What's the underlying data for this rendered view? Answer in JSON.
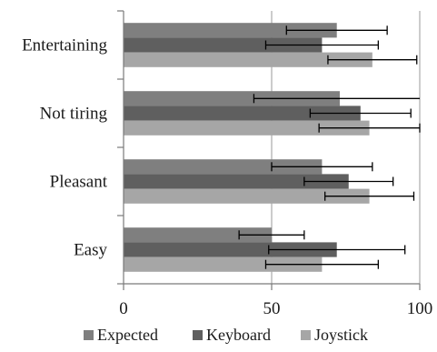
{
  "chart_data": {
    "type": "bar",
    "orientation": "horizontal",
    "categories": [
      "Entertaining",
      "Not tiring",
      "Pleasant",
      "Easy"
    ],
    "series": [
      {
        "name": "Expected",
        "color": "#7f7f7f",
        "values": [
          72,
          73,
          67,
          50
        ],
        "error": [
          17,
          29,
          17,
          11
        ]
      },
      {
        "name": "Keyboard",
        "color": "#5f5f5f",
        "values": [
          67,
          80,
          76,
          72
        ],
        "error": [
          19,
          17,
          15,
          23
        ]
      },
      {
        "name": "Joystick",
        "color": "#a6a6a6",
        "values": [
          84,
          83,
          83,
          67
        ],
        "error": [
          15,
          17,
          15,
          19
        ]
      }
    ],
    "xlim": [
      0,
      100
    ],
    "xticks": [
      0,
      50,
      100
    ],
    "grid": "vertical major",
    "legend_position": "bottom",
    "title": "",
    "xlabel": "",
    "ylabel": ""
  }
}
